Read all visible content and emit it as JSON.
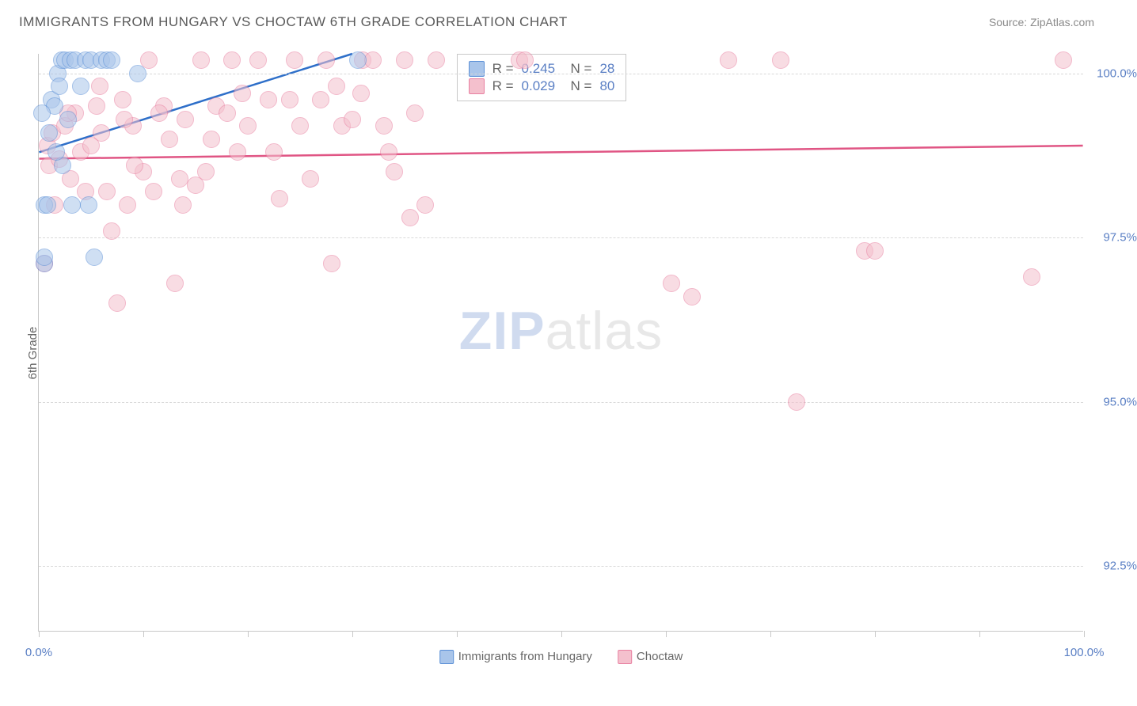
{
  "title": "IMMIGRANTS FROM HUNGARY VS CHOCTAW 6TH GRADE CORRELATION CHART",
  "source": "Source: ZipAtlas.com",
  "watermark": {
    "part1": "ZIP",
    "part2": "atlas"
  },
  "chart": {
    "type": "scatter",
    "ylabel": "6th Grade",
    "xlim": [
      0,
      100
    ],
    "ylim": [
      91.5,
      100.3
    ],
    "xtick_positions": [
      0,
      10,
      20,
      30,
      40,
      50,
      60,
      70,
      80,
      90,
      100
    ],
    "xtick_labels": {
      "0": "0.0%",
      "100": "100.0%"
    },
    "ytick_positions": [
      92.5,
      95.0,
      97.5,
      100.0
    ],
    "ytick_labels": [
      "92.5%",
      "95.0%",
      "97.5%",
      "100.0%"
    ],
    "grid_color": "#d8d8d8",
    "axis_color": "#c8c8c8",
    "background_color": "#ffffff",
    "label_fontsize": 15,
    "title_fontsize": 17,
    "tick_color": "#5a7fc4",
    "point_radius": 11,
    "point_opacity": 0.55,
    "series": [
      {
        "name": "Immigrants from Hungary",
        "fill_color": "#a9c5ea",
        "stroke_color": "#5a8fd6",
        "R": "0.245",
        "N": "28",
        "trend": {
          "x1": 0,
          "y1": 98.8,
          "x2": 30,
          "y2": 100.3,
          "color": "#2e6fc9",
          "width": 2.5
        },
        "points": [
          [
            0.5,
            97.1
          ],
          [
            0.5,
            97.2
          ],
          [
            0.5,
            98.0
          ],
          [
            0.8,
            98.0
          ],
          [
            1.0,
            99.1
          ],
          [
            1.2,
            99.6
          ],
          [
            1.5,
            99.5
          ],
          [
            1.8,
            100.0
          ],
          [
            2.0,
            99.8
          ],
          [
            2.2,
            100.2
          ],
          [
            2.5,
            100.2
          ],
          [
            2.8,
            99.3
          ],
          [
            3.0,
            100.2
          ],
          [
            3.5,
            100.2
          ],
          [
            4.0,
            99.8
          ],
          [
            4.5,
            100.2
          ],
          [
            5.0,
            100.2
          ],
          [
            5.3,
            97.2
          ],
          [
            6.0,
            100.2
          ],
          [
            6.5,
            100.2
          ],
          [
            7.0,
            100.2
          ],
          [
            9.5,
            100.0
          ],
          [
            30.5,
            100.2
          ],
          [
            2.3,
            98.6
          ],
          [
            3.2,
            98.0
          ],
          [
            4.8,
            98.0
          ],
          [
            1.7,
            98.8
          ],
          [
            0.3,
            99.4
          ]
        ]
      },
      {
        "name": "Choctaw",
        "fill_color": "#f4c0cd",
        "stroke_color": "#e87fa0",
        "R": "0.029",
        "N": "80",
        "trend": {
          "x1": 0,
          "y1": 98.7,
          "x2": 100,
          "y2": 98.9,
          "color": "#e05584",
          "width": 2.5
        },
        "points": [
          [
            0.5,
            97.1
          ],
          [
            0.8,
            98.9
          ],
          [
            1.0,
            98.6
          ],
          [
            1.3,
            99.1
          ],
          [
            1.5,
            98.0
          ],
          [
            2.0,
            98.7
          ],
          [
            2.5,
            99.2
          ],
          [
            3.0,
            98.4
          ],
          [
            3.5,
            99.4
          ],
          [
            4.0,
            98.8
          ],
          [
            5.0,
            98.9
          ],
          [
            5.5,
            99.5
          ],
          [
            6.0,
            99.1
          ],
          [
            6.5,
            98.2
          ],
          [
            7.0,
            97.6
          ],
          [
            7.5,
            96.5
          ],
          [
            8.0,
            99.6
          ],
          [
            8.5,
            98.0
          ],
          [
            9.0,
            99.2
          ],
          [
            10.0,
            98.5
          ],
          [
            10.5,
            100.2
          ],
          [
            11.0,
            98.2
          ],
          [
            12.0,
            99.5
          ],
          [
            13.0,
            96.8
          ],
          [
            13.5,
            98.4
          ],
          [
            14.0,
            99.3
          ],
          [
            15.0,
            98.3
          ],
          [
            15.5,
            100.2
          ],
          [
            16.0,
            98.5
          ],
          [
            17.0,
            99.5
          ],
          [
            18.0,
            99.4
          ],
          [
            18.5,
            100.2
          ],
          [
            19.0,
            98.8
          ],
          [
            20.0,
            99.2
          ],
          [
            21.0,
            100.2
          ],
          [
            22.0,
            99.6
          ],
          [
            23.0,
            98.1
          ],
          [
            24.0,
            99.6
          ],
          [
            24.5,
            100.2
          ],
          [
            25.0,
            99.2
          ],
          [
            26.0,
            98.4
          ],
          [
            27.0,
            99.6
          ],
          [
            27.5,
            100.2
          ],
          [
            28.0,
            97.1
          ],
          [
            29.0,
            99.2
          ],
          [
            30.0,
            99.3
          ],
          [
            31.0,
            100.2
          ],
          [
            32.0,
            100.2
          ],
          [
            33.0,
            99.2
          ],
          [
            34.0,
            98.5
          ],
          [
            35.0,
            100.2
          ],
          [
            35.5,
            97.8
          ],
          [
            37.0,
            98.0
          ],
          [
            38.0,
            100.2
          ],
          [
            46.0,
            100.2
          ],
          [
            46.5,
            100.2
          ],
          [
            60.5,
            96.8
          ],
          [
            66.0,
            100.2
          ],
          [
            71.0,
            100.2
          ],
          [
            72.5,
            95.0
          ],
          [
            79.0,
            97.3
          ],
          [
            80.0,
            97.3
          ],
          [
            95.0,
            96.9
          ],
          [
            98.0,
            100.2
          ],
          [
            62.5,
            96.6
          ],
          [
            12.5,
            99.0
          ],
          [
            5.8,
            99.8
          ],
          [
            9.2,
            98.6
          ],
          [
            11.5,
            99.4
          ],
          [
            16.5,
            99.0
          ],
          [
            19.5,
            99.7
          ],
          [
            22.5,
            98.8
          ],
          [
            28.5,
            99.8
          ],
          [
            30.8,
            99.7
          ],
          [
            33.5,
            98.8
          ],
          [
            36.0,
            99.4
          ],
          [
            13.8,
            98.0
          ],
          [
            8.2,
            99.3
          ],
          [
            4.5,
            98.2
          ],
          [
            2.8,
            99.4
          ]
        ]
      }
    ],
    "bottom_legend": [
      {
        "swatch_fill": "#a9c5ea",
        "swatch_stroke": "#5a8fd6",
        "label": "Immigrants from Hungary"
      },
      {
        "swatch_fill": "#f4c0cd",
        "swatch_stroke": "#e87fa0",
        "label": "Choctaw"
      }
    ],
    "stats_box": {
      "left_pct": 40,
      "top_pct": 0
    }
  }
}
